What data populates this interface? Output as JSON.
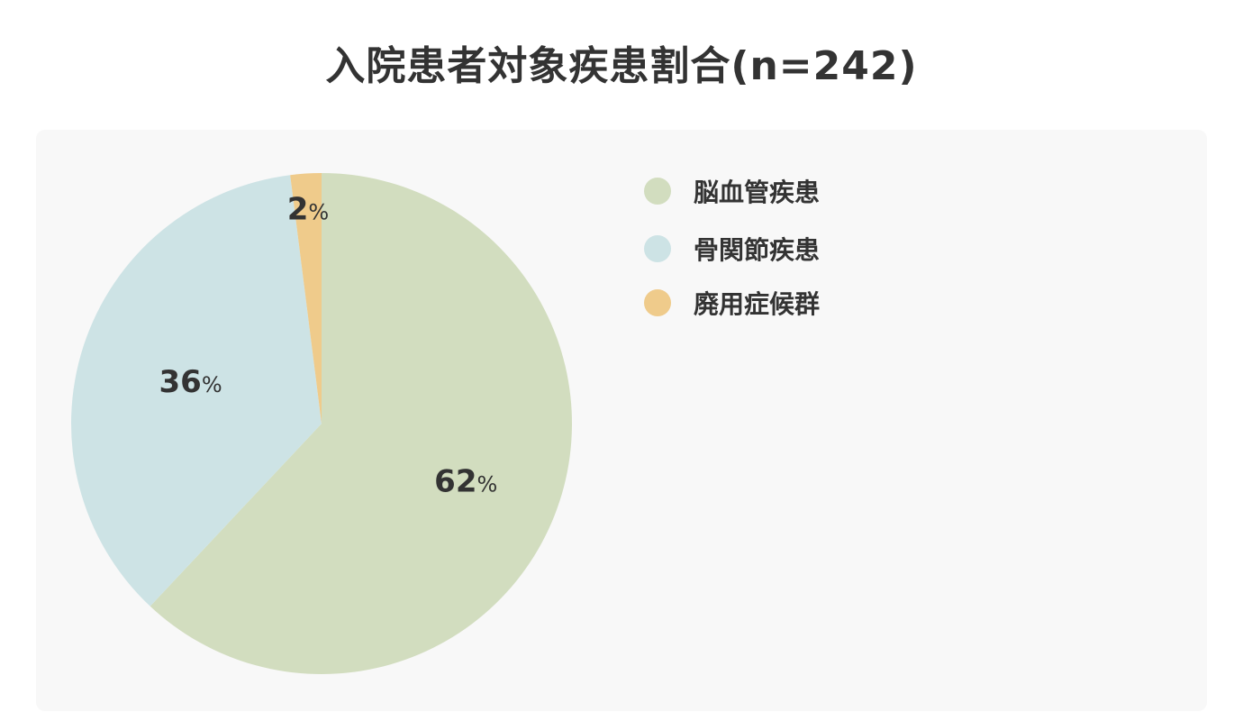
{
  "chart_data": {
    "type": "pie",
    "title": "入院患者対象疾患割合(n=242)",
    "categories": [
      "脳血管疾患",
      "骨関節疾患",
      "廃用症候群"
    ],
    "values": [
      62,
      36,
      2
    ],
    "value_suffix": "%",
    "colors": [
      "#d2ddbf",
      "#cde3e5",
      "#efcb8b"
    ],
    "start_angle": "12 o'clock",
    "direction": "clockwise",
    "legend_position": "right"
  }
}
